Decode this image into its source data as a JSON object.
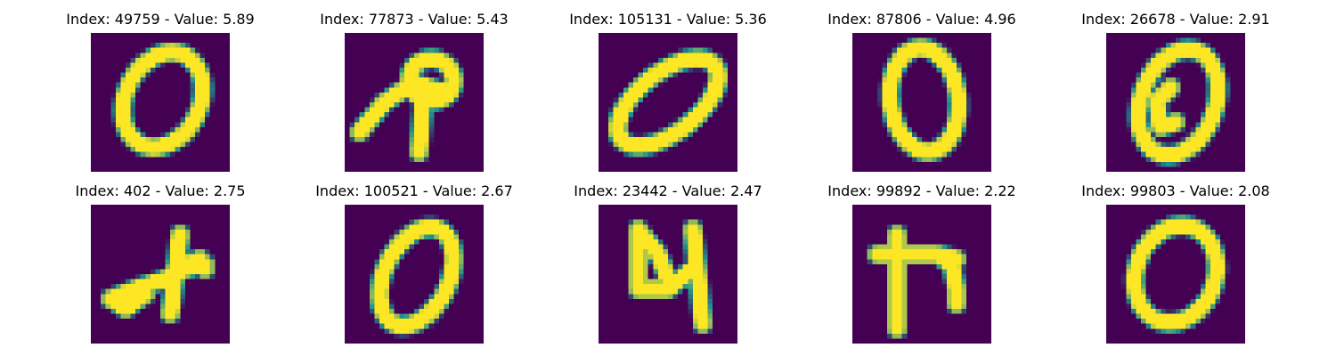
{
  "colormap": "viridis",
  "colors": {
    "background": "#440154",
    "stroke": "#fde725",
    "edge": "#21918c"
  },
  "images": [
    {
      "index": "49759",
      "value": "5.89",
      "title": "Index: 49759 - Value: 5.89",
      "depicts": "0"
    },
    {
      "index": "77873",
      "value": "5.43",
      "title": "Index: 77873 - Value: 5.43",
      "depicts": "loop-with-legs"
    },
    {
      "index": "105131",
      "value": "5.36",
      "title": "Index: 105131 - Value: 5.36",
      "depicts": "0"
    },
    {
      "index": "87806",
      "value": "4.96",
      "title": "Index: 87806 - Value: 4.96",
      "depicts": "0"
    },
    {
      "index": "26678",
      "value": "2.91",
      "title": "Index: 26678 - Value: 2.91",
      "depicts": "0-curl"
    },
    {
      "index": "402",
      "value": "2.75",
      "title": "Index: 402 - Value: 2.75",
      "depicts": "x-like"
    },
    {
      "index": "100521",
      "value": "2.67",
      "title": "Index: 100521 - Value: 2.67",
      "depicts": "0"
    },
    {
      "index": "23442",
      "value": "2.47",
      "title": "Index: 23442 - Value: 2.47",
      "depicts": "4"
    },
    {
      "index": "99892",
      "value": "2.22",
      "title": "Index: 99892 - Value: 2.22",
      "depicts": "h-like"
    },
    {
      "index": "99803",
      "value": "2.08",
      "title": "Index: 99803 - Value: 2.08",
      "depicts": "0"
    }
  ]
}
